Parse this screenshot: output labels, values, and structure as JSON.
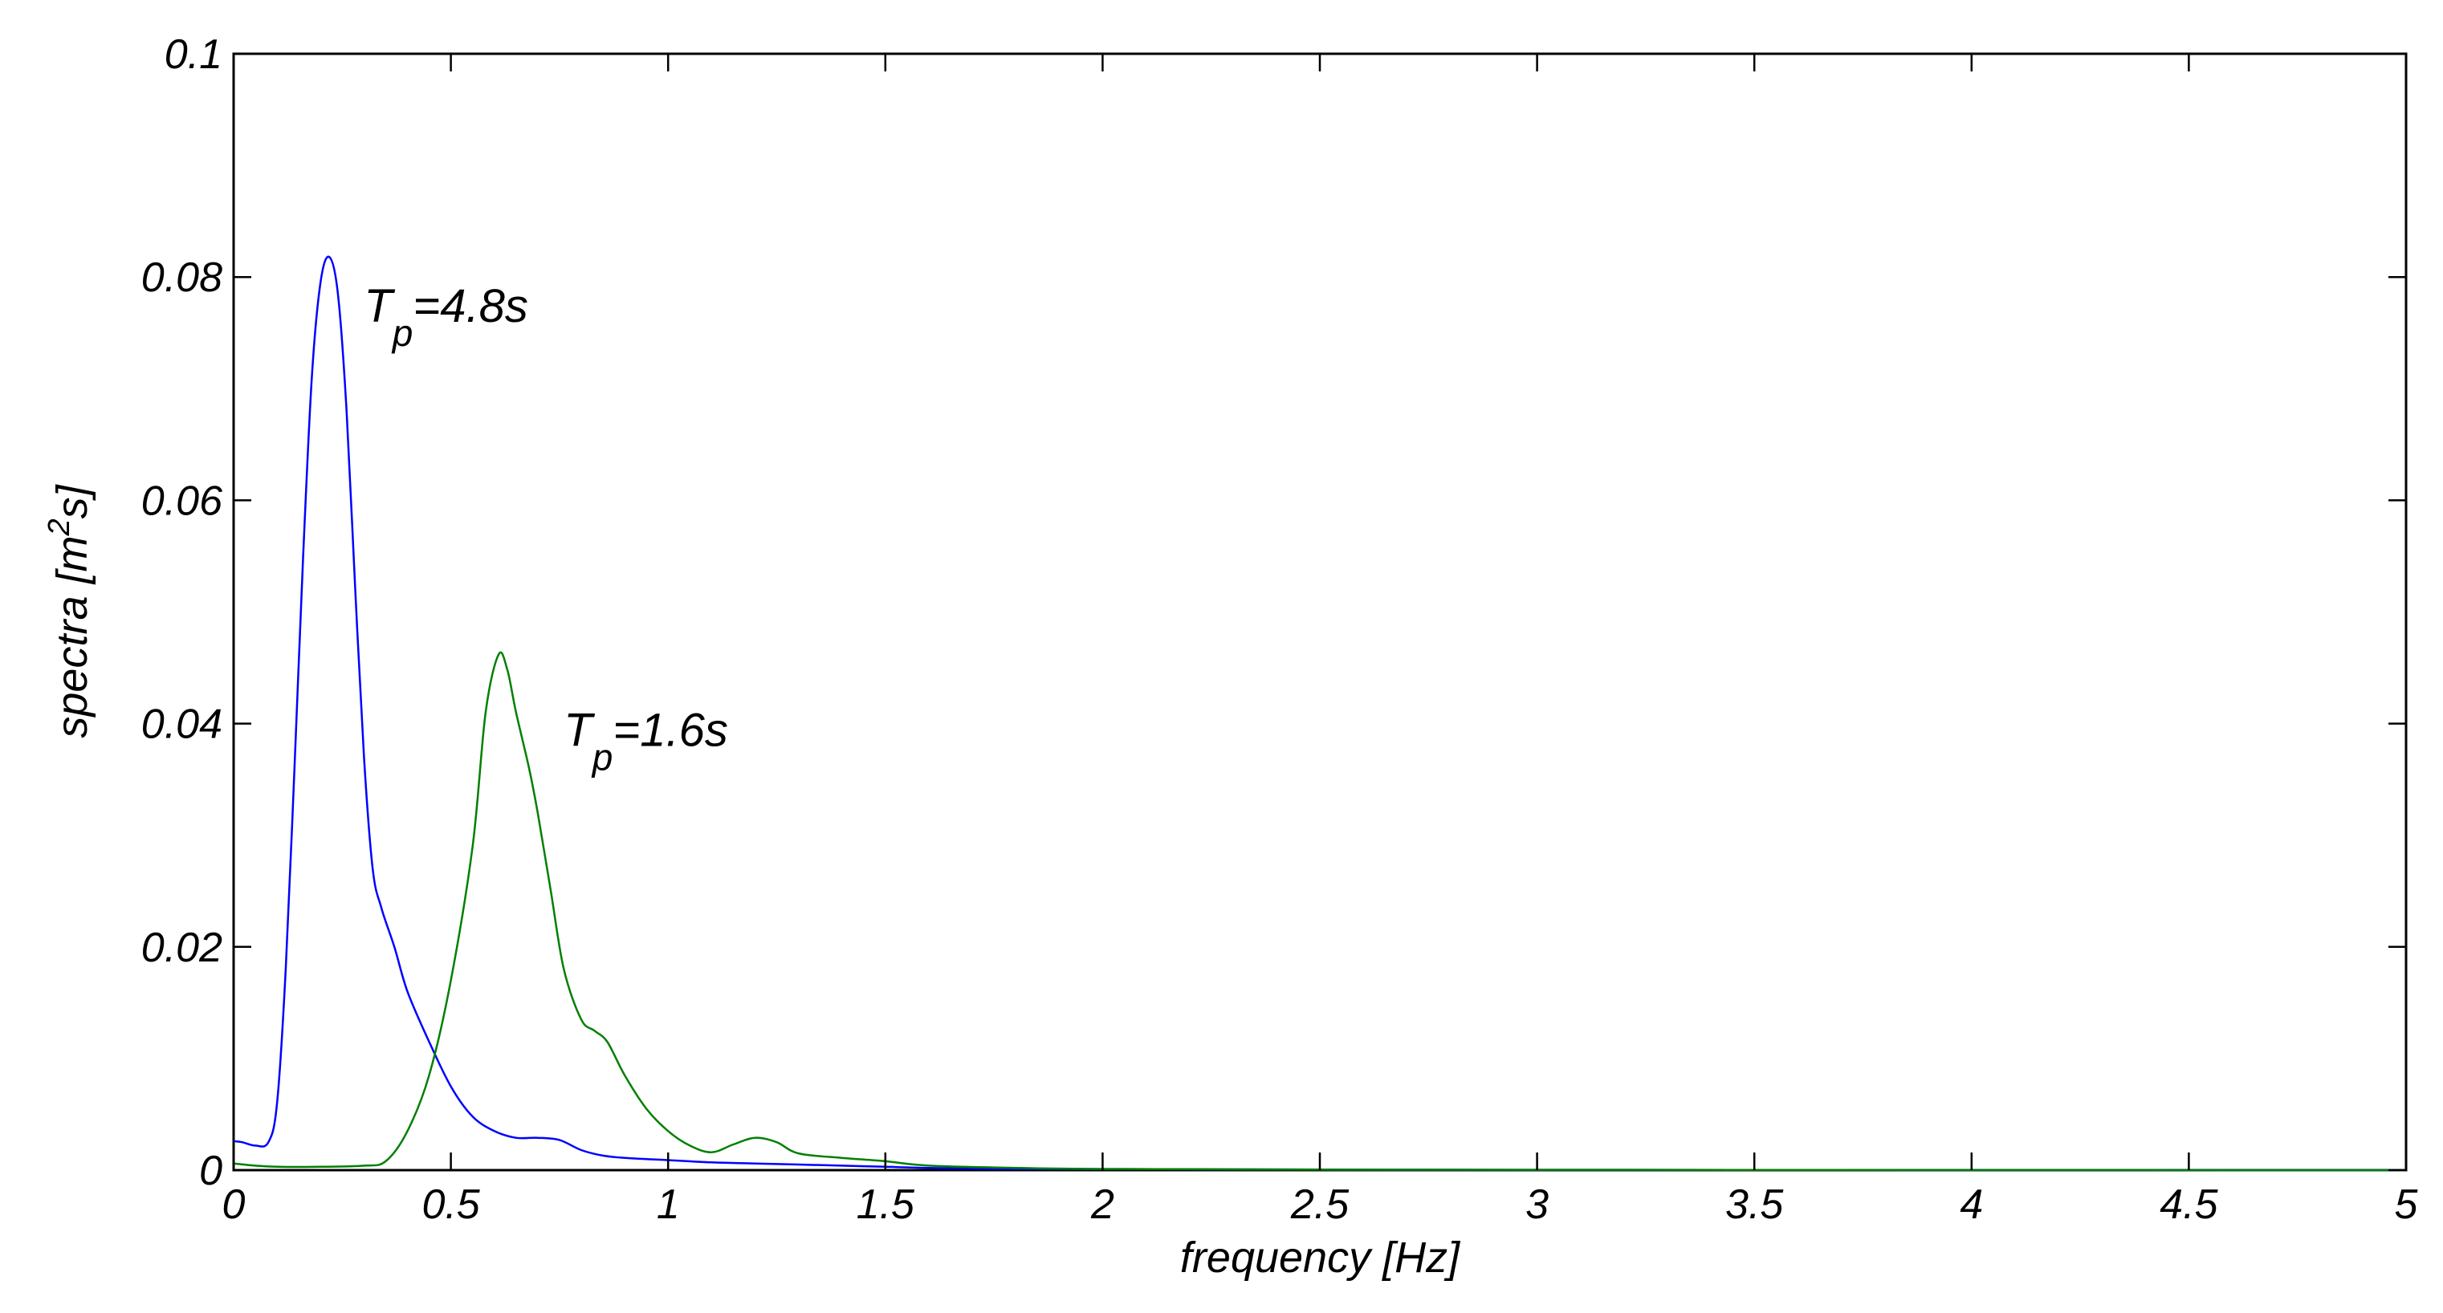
{
  "chart_data": {
    "type": "line",
    "title": "",
    "xlabel": "frequency [Hz]",
    "ylabel": {
      "prefix": "spectra [m",
      "superscript": "2",
      "suffix": "s]"
    },
    "xlim": [
      0,
      5
    ],
    "ylim": [
      0,
      0.1
    ],
    "grid": false,
    "legend": "none",
    "x_ticks": [
      {
        "value": 0,
        "label": "0"
      },
      {
        "value": 0.5,
        "label": "0.5"
      },
      {
        "value": 1,
        "label": "1"
      },
      {
        "value": 1.5,
        "label": "1.5"
      },
      {
        "value": 2,
        "label": "2"
      },
      {
        "value": 2.5,
        "label": "2.5"
      },
      {
        "value": 3,
        "label": "3"
      },
      {
        "value": 3.5,
        "label": "3.5"
      },
      {
        "value": 4,
        "label": "4"
      },
      {
        "value": 4.5,
        "label": "4.5"
      },
      {
        "value": 5,
        "label": "5"
      }
    ],
    "y_ticks": [
      {
        "value": 0,
        "label": "0"
      },
      {
        "value": 0.02,
        "label": "0.02"
      },
      {
        "value": 0.04,
        "label": "0.04"
      },
      {
        "value": 0.06,
        "label": "0.06"
      },
      {
        "value": 0.08,
        "label": "0.08"
      },
      {
        "value": 0.1,
        "label": "0.1"
      }
    ],
    "series": [
      {
        "color": "#0000ff",
        "x": [
          0,
          0.02,
          0.05,
          0.08,
          0.1,
          0.12,
          0.14,
          0.16,
          0.18,
          0.2,
          0.22,
          0.24,
          0.26,
          0.28,
          0.3,
          0.32,
          0.34,
          0.37,
          0.4,
          0.45,
          0.5,
          0.55,
          0.6,
          0.65,
          0.7,
          0.75,
          0.8,
          0.85,
          0.9,
          1.0,
          1.1,
          1.2,
          1.3,
          1.4,
          1.5,
          1.6,
          1.8,
          2.0,
          2.5,
          3.0,
          4.0,
          5.0
        ],
        "y": [
          0.0026,
          0.0025,
          0.0022,
          0.0025,
          0.006,
          0.018,
          0.036,
          0.055,
          0.071,
          0.0795,
          0.0818,
          0.0785,
          0.068,
          0.052,
          0.037,
          0.027,
          0.0235,
          0.02,
          0.016,
          0.0115,
          0.0075,
          0.0048,
          0.0035,
          0.0029,
          0.0029,
          0.0027,
          0.0018,
          0.0013,
          0.0011,
          0.0009,
          0.0007,
          0.0006,
          0.0005,
          0.0004,
          0.0003,
          0.0002,
          0.0001,
          0.0001,
          5e-05,
          3e-05,
          1e-05,
          0.0
        ]
      },
      {
        "color": "#008000",
        "x": [
          0,
          0.05,
          0.1,
          0.2,
          0.3,
          0.35,
          0.4,
          0.45,
          0.5,
          0.55,
          0.58,
          0.61,
          0.63,
          0.65,
          0.68,
          0.7,
          0.73,
          0.76,
          0.8,
          0.83,
          0.86,
          0.9,
          0.95,
          1.0,
          1.05,
          1.1,
          1.15,
          1.2,
          1.25,
          1.3,
          1.4,
          1.5,
          1.6,
          1.8,
          2.0,
          2.5,
          3.0,
          4.0,
          5.0
        ],
        "y": [
          0.0006,
          0.0004,
          0.0003,
          0.0003,
          0.0004,
          0.0008,
          0.0035,
          0.0085,
          0.017,
          0.029,
          0.041,
          0.0462,
          0.0448,
          0.041,
          0.036,
          0.032,
          0.025,
          0.018,
          0.0135,
          0.0125,
          0.0115,
          0.0085,
          0.0055,
          0.0035,
          0.0022,
          0.0016,
          0.0023,
          0.0029,
          0.0025,
          0.0015,
          0.0011,
          0.0008,
          0.0004,
          0.0002,
          0.0001,
          5e-05,
          3e-05,
          1e-05,
          0.0
        ]
      }
    ],
    "annotations": [
      {
        "main": "T",
        "sub": "p",
        "rest": "=4.8s",
        "x": 0.3,
        "y": 0.076
      },
      {
        "main": "T",
        "sub": "p",
        "rest": "=1.6s",
        "x": 0.76,
        "y": 0.038
      }
    ]
  }
}
